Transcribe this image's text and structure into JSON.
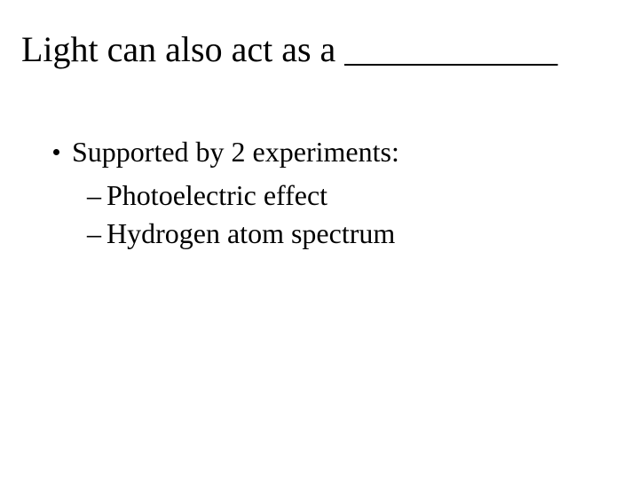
{
  "title": "Light can also act as a ____________",
  "bullet": "Supported by 2 experiments:",
  "sub1": "Photoelectric effect",
  "sub2": "Hydrogen atom spectrum",
  "dash": "–"
}
